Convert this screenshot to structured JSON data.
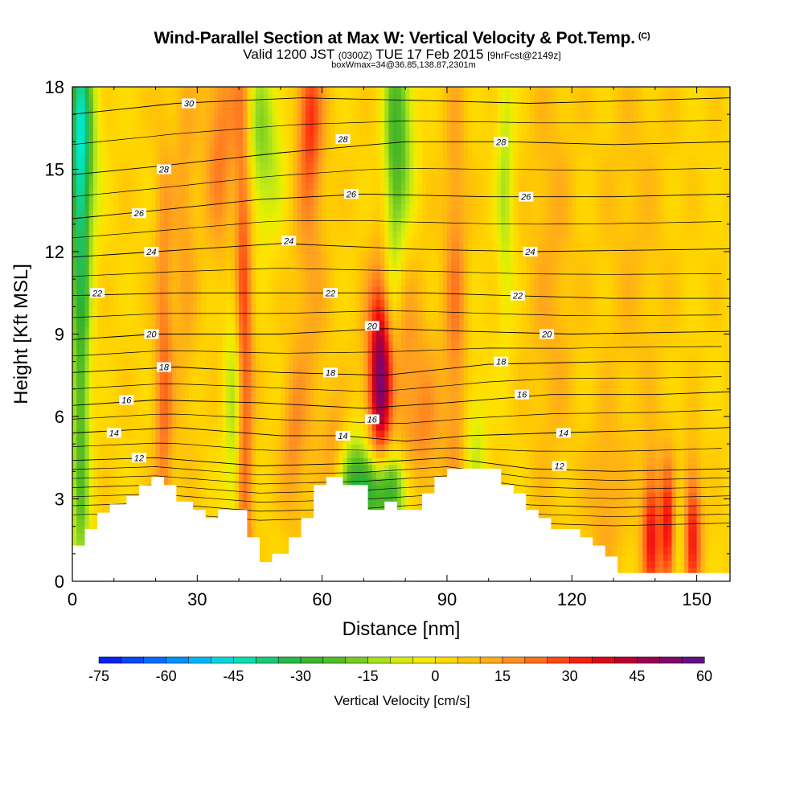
{
  "title": {
    "main": "Wind-Parallel Section at Max W: Vertical Velocity & Pot.Temp.",
    "main_suffix": "(C)",
    "valid_prefix": "Valid 1200 JST",
    "valid_z": "(0300Z)",
    "valid_date": "TUE 17 Feb 2015",
    "valid_fcst": "[9hrFcst@2149z]",
    "boxline": "boxWmax=34@36.85,138.87,2301m"
  },
  "chart_data": {
    "type": "heatmap",
    "xlabel": "Distance [nm]",
    "ylabel": "Height [Kft MSL]",
    "xlim": [
      0,
      158
    ],
    "ylim": [
      0,
      18
    ],
    "x_ticks": [
      0,
      30,
      60,
      90,
      120,
      150
    ],
    "y_ticks": [
      0,
      3,
      6,
      9,
      12,
      15,
      18
    ],
    "colorbar": {
      "label": "Vertical Velocity [cm/s]",
      "range": [
        -75,
        60
      ],
      "step": 5,
      "tick_labels": [
        -75,
        -60,
        -45,
        -30,
        -15,
        0,
        15,
        30,
        45,
        60
      ]
    },
    "terrain_profile_kft": [
      [
        0,
        1.3
      ],
      [
        3,
        1.3
      ],
      [
        3,
        1.9
      ],
      [
        6,
        1.9
      ],
      [
        6,
        2.5
      ],
      [
        9,
        2.5
      ],
      [
        9,
        2.8
      ],
      [
        13,
        2.8
      ],
      [
        13,
        3.1
      ],
      [
        16,
        3.1
      ],
      [
        16,
        3.5
      ],
      [
        19,
        3.5
      ],
      [
        19,
        3.8
      ],
      [
        22,
        3.8
      ],
      [
        22,
        3.5
      ],
      [
        25,
        3.5
      ],
      [
        25,
        2.9
      ],
      [
        29,
        2.9
      ],
      [
        29,
        2.6
      ],
      [
        32,
        2.6
      ],
      [
        32,
        2.3
      ],
      [
        35,
        2.3
      ],
      [
        35,
        2.6
      ],
      [
        42,
        2.6
      ],
      [
        42,
        1.6
      ],
      [
        45,
        1.6
      ],
      [
        45,
        0.7
      ],
      [
        48,
        0.7
      ],
      [
        48,
        1.0
      ],
      [
        52,
        1.0
      ],
      [
        52,
        1.6
      ],
      [
        55,
        1.6
      ],
      [
        55,
        2.3
      ],
      [
        58,
        2.3
      ],
      [
        58,
        3.5
      ],
      [
        61,
        3.5
      ],
      [
        61,
        3.8
      ],
      [
        65,
        3.8
      ],
      [
        65,
        3.5
      ],
      [
        71,
        3.5
      ],
      [
        71,
        2.6
      ],
      [
        75,
        2.6
      ],
      [
        75,
        2.9
      ],
      [
        78,
        2.9
      ],
      [
        78,
        2.6
      ],
      [
        84,
        2.6
      ],
      [
        84,
        3.2
      ],
      [
        87,
        3.2
      ],
      [
        87,
        3.8
      ],
      [
        90,
        3.8
      ],
      [
        90,
        4.1
      ],
      [
        103,
        4.1
      ],
      [
        103,
        3.5
      ],
      [
        106,
        3.5
      ],
      [
        106,
        3.2
      ],
      [
        109,
        3.2
      ],
      [
        109,
        2.6
      ],
      [
        112,
        2.6
      ],
      [
        112,
        2.3
      ],
      [
        115,
        2.3
      ],
      [
        115,
        1.9
      ],
      [
        122,
        1.9
      ],
      [
        122,
        1.6
      ],
      [
        125,
        1.6
      ],
      [
        125,
        1.3
      ],
      [
        128,
        1.3
      ],
      [
        128,
        0.9
      ],
      [
        131,
        0.9
      ],
      [
        131,
        0.3
      ],
      [
        158,
        0.3
      ]
    ],
    "series": [
      {
        "name": "12",
        "level": 12,
        "points": [
          [
            0,
            4.4
          ],
          [
            20,
            4.5
          ],
          [
            45,
            4.2
          ],
          [
            70,
            4.3
          ],
          [
            90,
            4.5
          ],
          [
            110,
            4.1
          ],
          [
            130,
            4.0
          ],
          [
            158,
            4.1
          ]
        ]
      },
      {
        "name": "14",
        "level": 14,
        "points": [
          [
            0,
            5.4
          ],
          [
            25,
            5.6
          ],
          [
            50,
            5.3
          ],
          [
            65,
            5.3
          ],
          [
            80,
            5.1
          ],
          [
            95,
            5.3
          ],
          [
            115,
            5.4
          ],
          [
            140,
            5.5
          ],
          [
            158,
            5.6
          ]
        ]
      },
      {
        "name": "16",
        "level": 16,
        "points": [
          [
            0,
            6.4
          ],
          [
            20,
            6.6
          ],
          [
            45,
            6.5
          ],
          [
            70,
            6.3
          ],
          [
            90,
            6.5
          ],
          [
            115,
            6.8
          ],
          [
            140,
            6.8
          ],
          [
            158,
            6.9
          ]
        ]
      },
      {
        "name": "18",
        "level": 18,
        "points": [
          [
            0,
            7.6
          ],
          [
            25,
            7.8
          ],
          [
            50,
            7.6
          ],
          [
            75,
            7.5
          ],
          [
            100,
            7.9
          ],
          [
            130,
            8.0
          ],
          [
            158,
            8.0
          ]
        ]
      },
      {
        "name": "20",
        "level": 20,
        "points": [
          [
            0,
            8.8
          ],
          [
            20,
            9.0
          ],
          [
            50,
            9.0
          ],
          [
            75,
            9.2
          ],
          [
            95,
            9.1
          ],
          [
            120,
            9.0
          ],
          [
            158,
            9.1
          ]
        ]
      },
      {
        "name": "22",
        "level": 22,
        "points": [
          [
            0,
            10.4
          ],
          [
            25,
            10.5
          ],
          [
            60,
            10.5
          ],
          [
            85,
            10.5
          ],
          [
            105,
            10.4
          ],
          [
            130,
            10.3
          ],
          [
            158,
            10.3
          ]
        ]
      },
      {
        "name": "24",
        "level": 24,
        "points": [
          [
            0,
            11.8
          ],
          [
            20,
            12.0
          ],
          [
            50,
            12.3
          ],
          [
            80,
            12.1
          ],
          [
            110,
            12.0
          ],
          [
            158,
            12.1
          ]
        ]
      },
      {
        "name": "26",
        "level": 26,
        "points": [
          [
            0,
            13.2
          ],
          [
            20,
            13.5
          ],
          [
            45,
            13.9
          ],
          [
            70,
            14.1
          ],
          [
            100,
            14.0
          ],
          [
            130,
            14.0
          ],
          [
            158,
            14.1
          ]
        ]
      },
      {
        "name": "28",
        "level": 28,
        "points": [
          [
            0,
            14.8
          ],
          [
            20,
            15.1
          ],
          [
            50,
            15.6
          ],
          [
            80,
            16.0
          ],
          [
            105,
            16.0
          ],
          [
            130,
            15.9
          ],
          [
            158,
            16.0
          ]
        ]
      },
      {
        "name": "30",
        "level": 30,
        "points": [
          [
            0,
            17.0
          ],
          [
            25,
            17.4
          ],
          [
            55,
            17.6
          ],
          [
            85,
            17.5
          ],
          [
            110,
            17.4
          ],
          [
            135,
            17.5
          ],
          [
            158,
            17.6
          ]
        ]
      }
    ],
    "contour_labels": [
      {
        "text": "30",
        "x": 28,
        "y": 17.4
      },
      {
        "text": "28",
        "x": 22,
        "y": 15.0
      },
      {
        "text": "28",
        "x": 65,
        "y": 16.1
      },
      {
        "text": "28",
        "x": 103,
        "y": 16.0
      },
      {
        "text": "26",
        "x": 16,
        "y": 13.4
      },
      {
        "text": "26",
        "x": 67,
        "y": 14.1
      },
      {
        "text": "26",
        "x": 109,
        "y": 14.0
      },
      {
        "text": "24",
        "x": 19,
        "y": 12.0
      },
      {
        "text": "24",
        "x": 52,
        "y": 12.4
      },
      {
        "text": "24",
        "x": 110,
        "y": 12.0
      },
      {
        "text": "22",
        "x": 6,
        "y": 10.5
      },
      {
        "text": "22",
        "x": 62,
        "y": 10.5
      },
      {
        "text": "22",
        "x": 107,
        "y": 10.4
      },
      {
        "text": "20",
        "x": 19,
        "y": 9.0
      },
      {
        "text": "20",
        "x": 72,
        "y": 9.3
      },
      {
        "text": "20",
        "x": 114,
        "y": 9.0
      },
      {
        "text": "18",
        "x": 22,
        "y": 7.8
      },
      {
        "text": "18",
        "x": 62,
        "y": 7.6
      },
      {
        "text": "18",
        "x": 103,
        "y": 8.0
      },
      {
        "text": "16",
        "x": 13,
        "y": 6.6
      },
      {
        "text": "16",
        "x": 72,
        "y": 5.9
      },
      {
        "text": "16",
        "x": 108,
        "y": 6.8
      },
      {
        "text": "14",
        "x": 10,
        "y": 5.4
      },
      {
        "text": "14",
        "x": 65,
        "y": 5.3
      },
      {
        "text": "14",
        "x": 118,
        "y": 5.4
      },
      {
        "text": "12",
        "x": 16,
        "y": 4.5
      },
      {
        "text": "12",
        "x": 117,
        "y": 4.2
      }
    ],
    "w_features": [
      {
        "x": 2,
        "y": 10.0,
        "dx": 1.6,
        "dy": 10.0,
        "w": -30
      },
      {
        "x": 2,
        "y": 16.0,
        "dx": 3.0,
        "dy": 3.0,
        "w": -25
      },
      {
        "x": 41,
        "y": 9.0,
        "dx": 1.6,
        "dy": 10.0,
        "w": 28
      },
      {
        "x": 39,
        "y": 6.0,
        "dx": 1.6,
        "dy": 4.0,
        "w": -22
      },
      {
        "x": 45,
        "y": 16.0,
        "dx": 4.0,
        "dy": 2.5,
        "w": -20
      },
      {
        "x": 36,
        "y": 16.0,
        "dx": 3.0,
        "dy": 3.0,
        "w": 18
      },
      {
        "x": 74,
        "y": 7.3,
        "dx": 2.0,
        "dy": 2.5,
        "w": 40
      },
      {
        "x": 78,
        "y": 7.8,
        "dx": 5.0,
        "dy": 3.0,
        "w": 15
      },
      {
        "x": 74,
        "y": 3.3,
        "dx": 5.0,
        "dy": 1.0,
        "w": -35
      },
      {
        "x": 68,
        "y": 3.8,
        "dx": 4.0,
        "dy": 1.3,
        "w": -20
      },
      {
        "x": 77,
        "y": 12.0,
        "dx": 1.6,
        "dy": 6.0,
        "w": -15
      },
      {
        "x": 79,
        "y": 16.5,
        "dx": 2.5,
        "dy": 3.0,
        "w": -22
      },
      {
        "x": 92,
        "y": 10.0,
        "dx": 2.0,
        "dy": 6.0,
        "w": 15
      },
      {
        "x": 104,
        "y": 14.5,
        "dx": 1.6,
        "dy": 4.0,
        "w": -15
      },
      {
        "x": 97,
        "y": 5.0,
        "dx": 2.0,
        "dy": 2.0,
        "w": -12
      },
      {
        "x": 22,
        "y": 7.0,
        "dx": 1.6,
        "dy": 6.0,
        "w": 18
      },
      {
        "x": 57,
        "y": 12.0,
        "dx": 3.0,
        "dy": 6.0,
        "w": 10
      },
      {
        "x": 57,
        "y": 17.0,
        "dx": 2.0,
        "dy": 2.0,
        "w": 20
      },
      {
        "x": 63,
        "y": 4.5,
        "dx": 2.0,
        "dy": 1.5,
        "w": 15
      },
      {
        "x": 139,
        "y": 1.8,
        "dx": 1.5,
        "dy": 1.8,
        "w": 30
      },
      {
        "x": 143,
        "y": 1.8,
        "dx": 1.3,
        "dy": 1.8,
        "w": 30
      },
      {
        "x": 149,
        "y": 1.8,
        "dx": 1.5,
        "dy": 1.8,
        "w": 30
      },
      {
        "x": 146,
        "y": 1.6,
        "dx": 1.2,
        "dy": 1.5,
        "w": -8
      },
      {
        "x": 128,
        "y": 3.0,
        "dx": 3.0,
        "dy": 2.0,
        "w": 10
      },
      {
        "x": 27,
        "y": 13.0,
        "dx": 2.0,
        "dy": 5.0,
        "w": 10
      },
      {
        "x": 85,
        "y": 5.0,
        "dx": 3.0,
        "dy": 2.0,
        "w": 10
      },
      {
        "x": 53,
        "y": 5.0,
        "dx": 2.0,
        "dy": 2.0,
        "w": 12
      },
      {
        "x": 115,
        "y": 11.0,
        "dx": 4.0,
        "dy": 6.0,
        "w": 8
      },
      {
        "x": 135,
        "y": 12.0,
        "dx": 6.0,
        "dy": 6.0,
        "w": 5
      }
    ]
  }
}
